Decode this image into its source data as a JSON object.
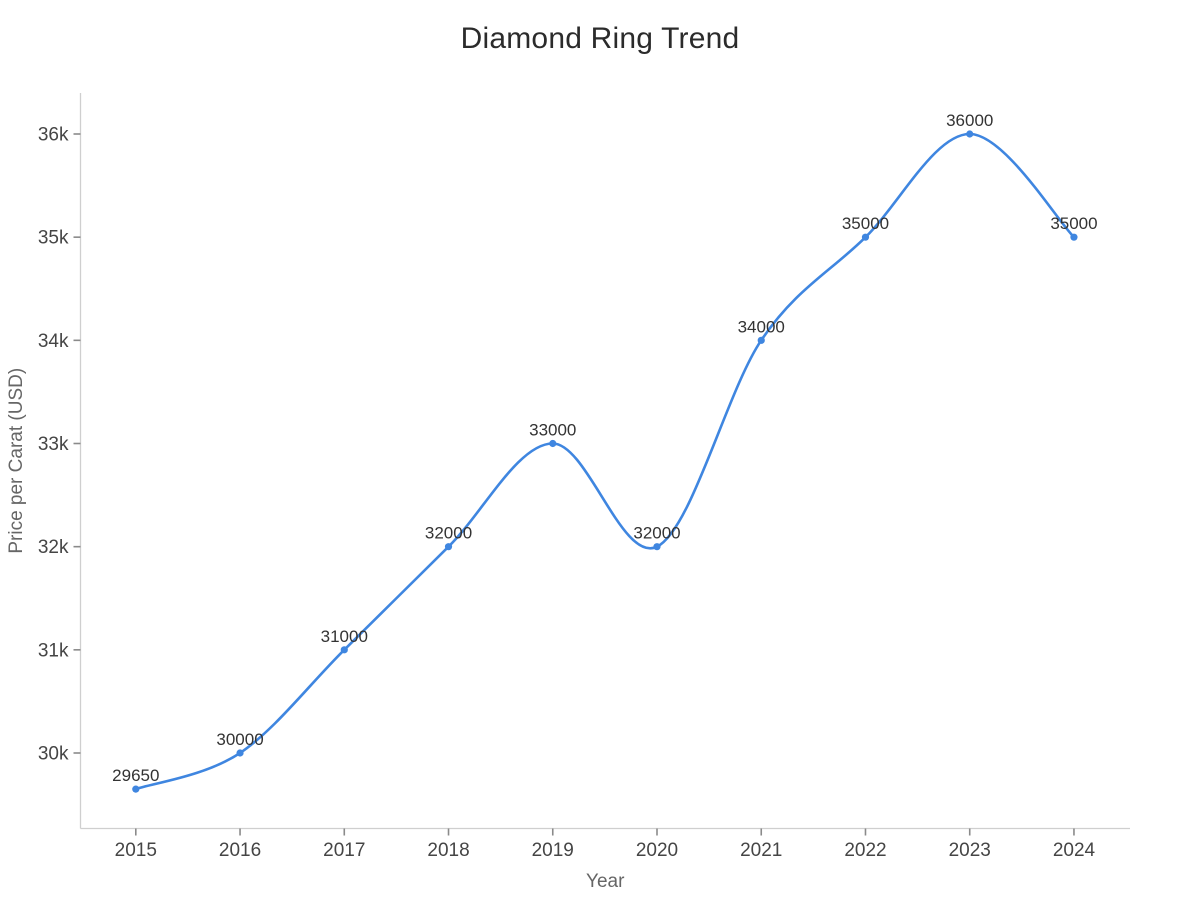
{
  "chart_data": {
    "type": "line",
    "title": "Diamond Ring Trend",
    "xlabel": "Year",
    "ylabel": "Price per Carat (USD)",
    "categories": [
      "2015",
      "2016",
      "2017",
      "2018",
      "2019",
      "2020",
      "2021",
      "2022",
      "2023",
      "2024"
    ],
    "values": [
      29650,
      30000,
      31000,
      32000,
      33000,
      32000,
      34000,
      35000,
      36000,
      35000
    ],
    "point_labels": [
      "29650",
      "30000",
      "31000",
      "32000",
      "33000",
      "32000",
      "34000",
      "35000",
      "36000",
      "35000"
    ],
    "ytick_values": [
      30000,
      31000,
      32000,
      33000,
      34000,
      35000,
      36000
    ],
    "ytick_labels": [
      "30k",
      "31k",
      "32k",
      "33k",
      "34k",
      "35k",
      "36k"
    ],
    "ylim": [
      29270,
      36400
    ],
    "grid": false,
    "legend": false,
    "smooth": true,
    "markers": true,
    "colors": {
      "line": "#3f86e0",
      "marker": "#3f86e0",
      "title": "#2b2b2b",
      "tick_label": "#454545",
      "axis_title": "#666666",
      "axis_line": "#cfcfcf",
      "tick_mark": "#8a8a8a",
      "point_label": "#333333",
      "background": "#ffffff"
    }
  }
}
